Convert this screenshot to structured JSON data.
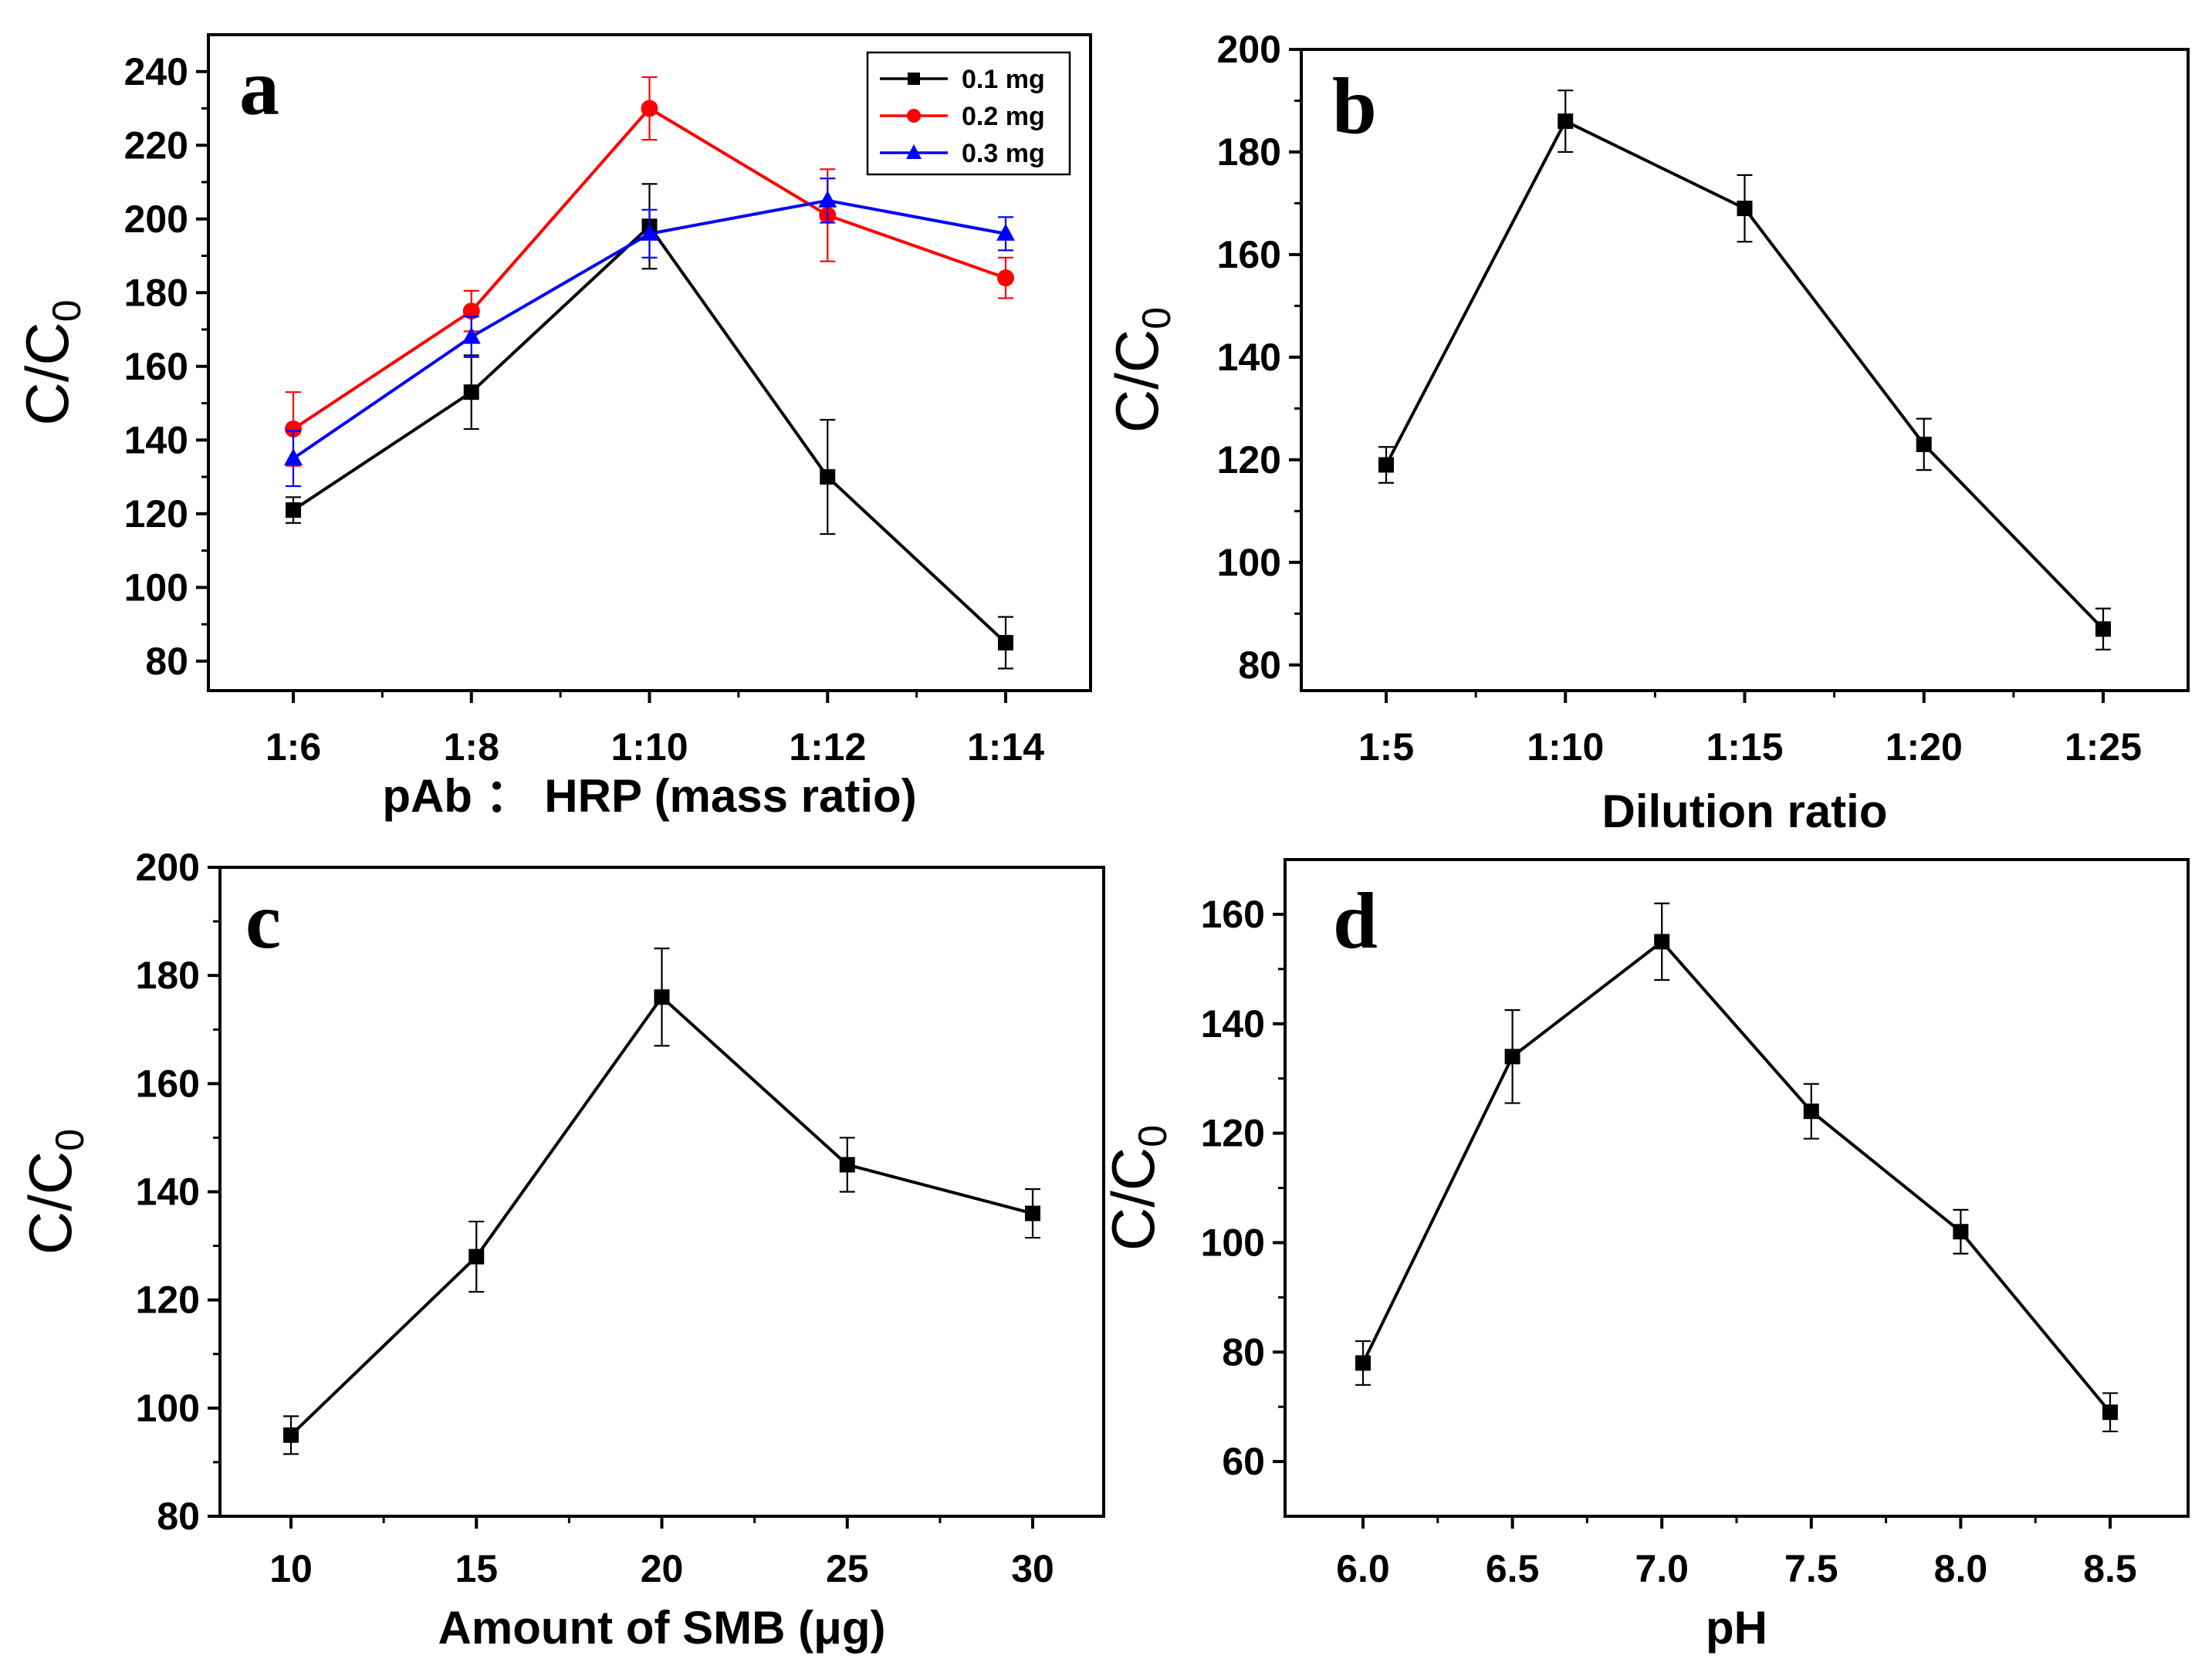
{
  "chart_data": [
    {
      "panel": "a",
      "type": "line",
      "ylabel": "C/C",
      "ylabel_sub": "0",
      "xlabel": "pAb ： HRP (mass ratio)",
      "categories": [
        "1:6",
        "1:8",
        "1:10",
        "1:12",
        "1:14"
      ],
      "ylim": [
        72,
        250
      ],
      "yticks": [
        80,
        100,
        120,
        140,
        160,
        180,
        200,
        220,
        240
      ],
      "legend_position": "top-right",
      "series": [
        {
          "name": "0.1 mg",
          "color": "#000000",
          "marker": "square",
          "values": [
            121,
            153,
            198,
            130,
            85
          ],
          "errors": [
            3.5,
            10,
            11.5,
            15.5,
            7
          ]
        },
        {
          "name": "0.2 mg",
          "color": "#ff0000",
          "marker": "circle",
          "values": [
            143,
            175,
            230,
            201,
            184
          ],
          "errors": [
            10,
            5.5,
            8.5,
            12.5,
            5.5
          ]
        },
        {
          "name": "0.3 mg",
          "color": "#0000ff",
          "marker": "triangle",
          "values": [
            135,
            168,
            196,
            205,
            196
          ],
          "errors": [
            7.5,
            5.5,
            6.5,
            6,
            4.5
          ]
        }
      ]
    },
    {
      "panel": "b",
      "type": "line",
      "ylabel": "C/C",
      "ylabel_sub": "0",
      "xlabel": "Dilution ratio",
      "categories": [
        "1:5",
        "1:10",
        "1:15",
        "1:20",
        "1:25"
      ],
      "ylim": [
        75,
        200
      ],
      "yticks": [
        80,
        100,
        120,
        140,
        160,
        180,
        200
      ],
      "series": [
        {
          "name": "",
          "color": "#000000",
          "marker": "square",
          "values": [
            119,
            186,
            169,
            123,
            87
          ],
          "errors": [
            3.5,
            6,
            6.5,
            5,
            4
          ]
        }
      ]
    },
    {
      "panel": "c",
      "type": "line",
      "ylabel": "C/C",
      "ylabel_sub": "0",
      "xlabel": "Amount of SMB (μg)",
      "categories": [
        "10",
        "15",
        "20",
        "25",
        "30"
      ],
      "ylim": [
        80,
        200
      ],
      "yticks": [
        80,
        100,
        120,
        140,
        160,
        180,
        200
      ],
      "series": [
        {
          "name": "",
          "color": "#000000",
          "marker": "square",
          "values": [
            95,
            128,
            176,
            145,
            136
          ],
          "errors": [
            3.5,
            6.5,
            9,
            5,
            4.5
          ]
        }
      ]
    },
    {
      "panel": "d",
      "type": "line",
      "ylabel": "C/C",
      "ylabel_sub": "0",
      "xlabel": "pH",
      "categories": [
        "6.0",
        "6.5",
        "7.0",
        "7.5",
        "8.0",
        "8.5"
      ],
      "ylim": [
        50,
        170
      ],
      "yticks": [
        60,
        80,
        100,
        120,
        140,
        160
      ],
      "series": [
        {
          "name": "",
          "color": "#000000",
          "marker": "square",
          "values": [
            78,
            134,
            155,
            124,
            102,
            69
          ],
          "errors": [
            4,
            8.5,
            7,
            5,
            4,
            3.5
          ]
        }
      ]
    }
  ]
}
